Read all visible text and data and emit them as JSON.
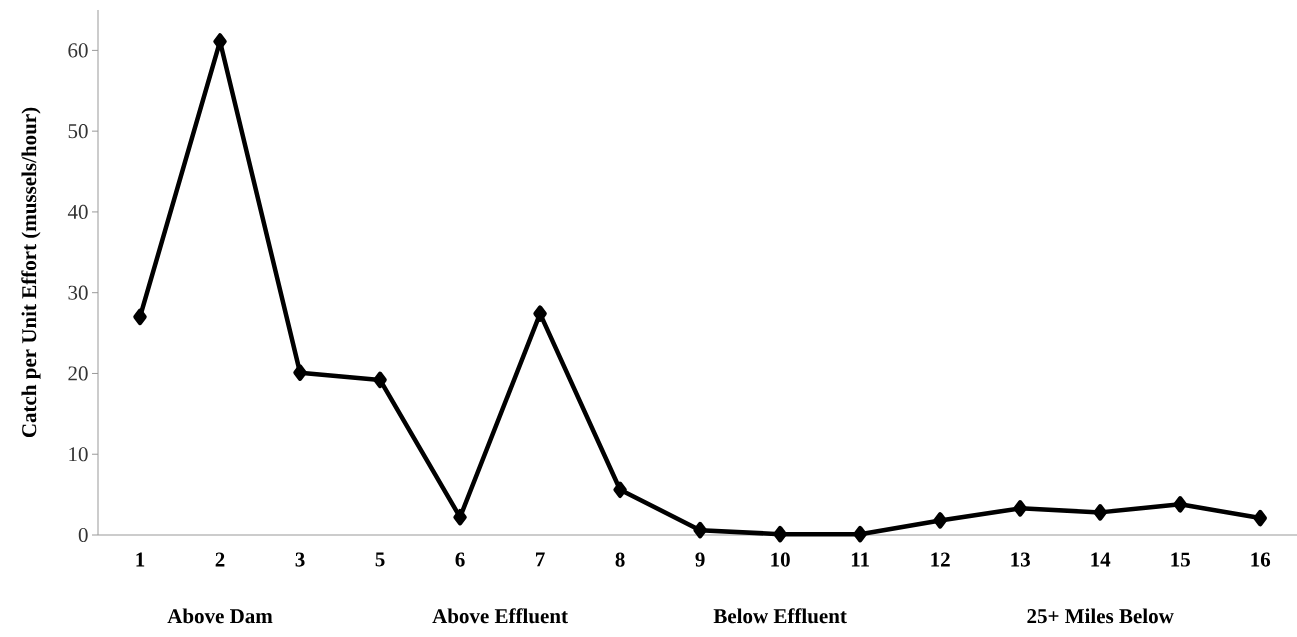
{
  "chart_data": {
    "type": "line",
    "ylabel": "Catch per Unit Effort  (mussels/hour)",
    "categories": [
      "1",
      "2",
      "3",
      "5",
      "6",
      "7",
      "8",
      "9",
      "10",
      "11",
      "12",
      "13",
      "14",
      "15",
      "16"
    ],
    "series": [
      {
        "color": "#000000",
        "values": [
          27,
          61.1,
          20.1,
          19.2,
          2.2,
          27.4,
          5.6,
          0.6,
          0.1,
          0.1,
          1.8,
          3.3,
          2.8,
          3.8,
          2.1
        ]
      }
    ],
    "ylim": [
      0,
      65
    ],
    "yticks": [
      0,
      10,
      20,
      30,
      40,
      50,
      60
    ],
    "marker": "diamond",
    "line_style": "solid",
    "annotations": [
      "Above Dam",
      "Above Effluent",
      "Below Effluent",
      "25+ Miles Below"
    ]
  }
}
